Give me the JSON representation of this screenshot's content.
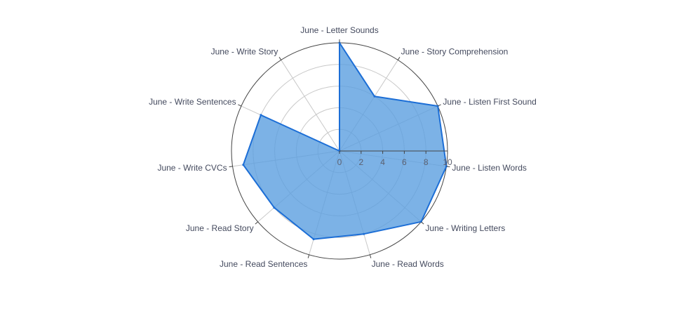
{
  "chart_data": {
    "type": "radar",
    "categories": [
      "June - Letter Sounds",
      "June - Story Comprehension",
      "June - Listen First Sound",
      "June - Listen Words",
      "June - Writing Letters",
      "June - Read Words",
      "June - Read Sentences",
      "June - Read Story",
      "June - Write CVCs",
      "June - Write Sentences",
      "June - Write Story"
    ],
    "series": [
      {
        "values": [
          10,
          6,
          10,
          10,
          10,
          8,
          8.5,
          8,
          9,
          8,
          0
        ]
      }
    ],
    "radial_range": [
      0,
      10
    ],
    "radial_ticks": [
      "0",
      "2",
      "4",
      "6",
      "8",
      "10"
    ],
    "grid": true,
    "colors": {
      "fill": "#5b9fe0",
      "line": "#1c6ed6",
      "grid": "#c8c8c8",
      "outer": "#444444"
    }
  }
}
